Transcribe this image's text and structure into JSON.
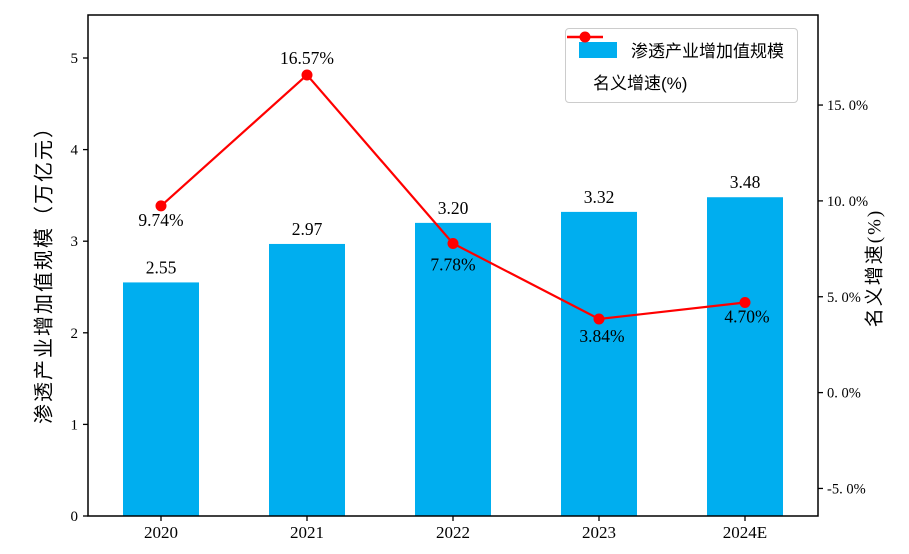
{
  "chart_data": {
    "type": "bar+line",
    "title": "",
    "categories": [
      "2020",
      "2021",
      "2022",
      "2023",
      "2024E"
    ],
    "series": [
      {
        "name": "渗透产业增加值规模",
        "type": "bar",
        "axis": "left",
        "values": [
          2.55,
          2.97,
          3.2,
          3.32,
          3.48
        ],
        "labels": [
          "2.55",
          "2.97",
          "3.20",
          "3.32",
          "3.48"
        ],
        "color": "#00AEEF"
      },
      {
        "name": "名义增速(%)",
        "type": "line",
        "axis": "right",
        "values": [
          9.74,
          16.57,
          7.78,
          3.84,
          4.7
        ],
        "labels": [
          "9.74%",
          "16.57%",
          "7.78%",
          "3.84%",
          "4.70%"
        ],
        "color": "#FF0000"
      }
    ],
    "left_axis": {
      "label": "渗透产业增加值规模（万亿元）",
      "tick_labels": [
        "0",
        "1",
        "2",
        "3",
        "4",
        "5"
      ],
      "tick_values": [
        0,
        1,
        2,
        3,
        4,
        5
      ]
    },
    "right_axis": {
      "label": "名义增速(%)",
      "tick_labels": [
        "-5. 0%",
        "0. 0%",
        "5. 0%",
        "10. 0%",
        "15. 0%"
      ],
      "tick_values": [
        -5,
        0,
        5,
        10,
        15
      ]
    },
    "legend": {
      "position": "top-right",
      "entries": [
        "渗透产业增加值规模",
        "名义增速(%)"
      ]
    },
    "grid": false
  },
  "colors": {
    "bar": "#00AEEF",
    "line": "#FF0000",
    "axis": "#000000",
    "text": "#000000",
    "legend_border": "#CCCCCC",
    "background": "#FFFFFF"
  }
}
